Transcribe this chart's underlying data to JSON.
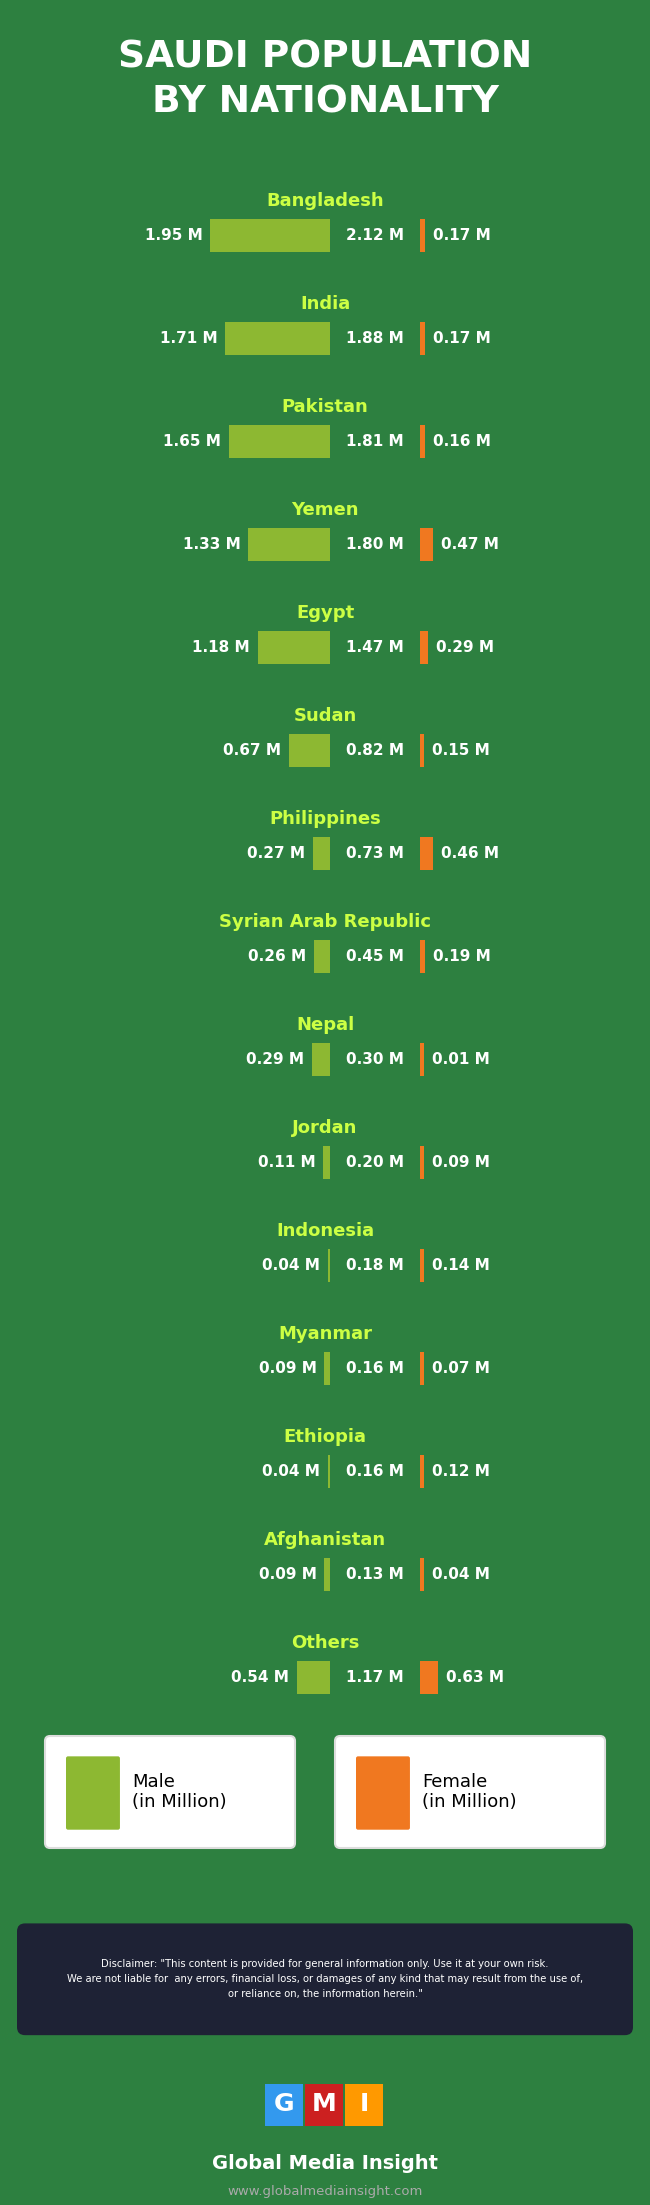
{
  "title": "SAUDI POPULATION\nBY NATIONALITY",
  "title_bg_color": "#1a6b2a",
  "main_bg_color": "#2d8040",
  "footer_bg_color": "#2b2d3a",
  "male_color": "#8db832",
  "female_color": "#f07820",
  "country_label_color": "#ccff44",
  "value_color": "#ffffff",
  "countries": [
    "Bangladesh",
    "India",
    "Pakistan",
    "Yemen",
    "Egypt",
    "Sudan",
    "Philippines",
    "Syrian Arab Republic",
    "Nepal",
    "Jordan",
    "Indonesia",
    "Myanmar",
    "Ethiopia",
    "Afghanistan",
    "Others"
  ],
  "male_values": [
    1.95,
    1.71,
    1.65,
    1.33,
    1.18,
    0.67,
    0.27,
    0.26,
    0.29,
    0.11,
    0.04,
    0.09,
    0.04,
    0.09,
    0.54
  ],
  "total_values": [
    2.12,
    1.88,
    1.81,
    1.8,
    1.47,
    0.82,
    0.73,
    0.45,
    0.3,
    0.2,
    0.18,
    0.16,
    0.16,
    0.13,
    1.17
  ],
  "female_values": [
    0.17,
    0.17,
    0.16,
    0.47,
    0.29,
    0.15,
    0.46,
    0.19,
    0.01,
    0.09,
    0.14,
    0.07,
    0.12,
    0.04,
    0.63
  ],
  "disclaimer_bold": "Disclaimer:",
  "disclaimer_text": " \"This content is provided for general information only. Use it at your own risk.\nWe are not liable for  any errors, financial loss, or damages of any kind that may result from the use of,\nor reliance on, the information herein.\"",
  "company_name": "Global Media Insight",
  "company_url": "www.globalmediainsight.com"
}
